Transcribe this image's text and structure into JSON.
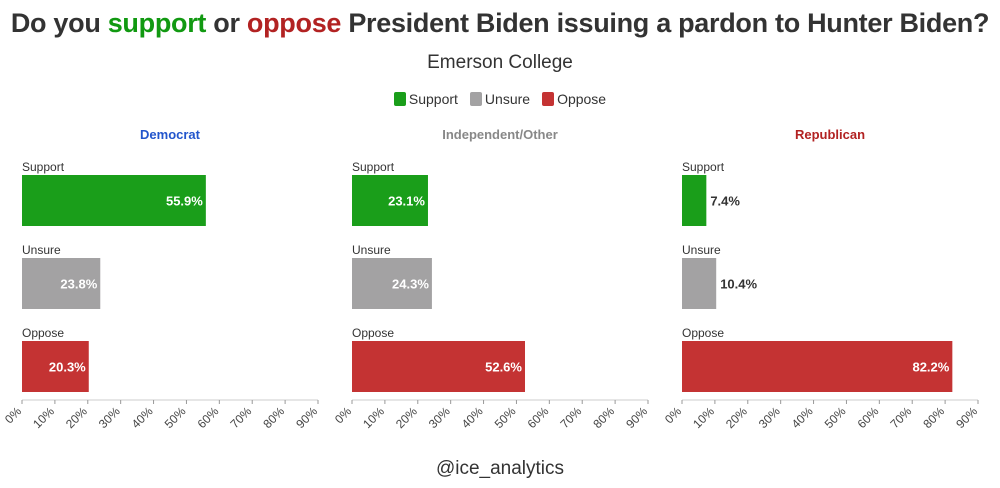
{
  "title": {
    "prefix": "Do you ",
    "word1": "support",
    "middle": " or ",
    "word2": "oppose",
    "suffix": " President Biden issuing a pardon to Hunter Biden?",
    "word1_color": "#119911",
    "word2_color": "#b22222"
  },
  "subtitle": "Emerson College",
  "legend": [
    {
      "label": "Support",
      "color": "#1a9e1a"
    },
    {
      "label": "Unsure",
      "color": "#a3a2a3"
    },
    {
      "label": "Oppose",
      "color": "#c43333"
    }
  ],
  "caption": "@ice_analytics",
  "chart_data": {
    "type": "bar",
    "orientation": "horizontal",
    "title": "Do you support or oppose President Biden issuing a pardon to Hunter Biden?",
    "subtitle": "Emerson College",
    "categories": [
      "Support",
      "Unsure",
      "Oppose"
    ],
    "xlim": [
      0,
      90
    ],
    "x_ticks": [
      "0%",
      "10%",
      "20%",
      "30%",
      "40%",
      "50%",
      "60%",
      "70%",
      "80%",
      "90%"
    ],
    "legend_position": "top-center",
    "panels": [
      {
        "name": "Democrat",
        "color": "#2255cc",
        "values": [
          55.9,
          23.8,
          20.3
        ],
        "labels": [
          "55.9%",
          "23.8%",
          "20.3%"
        ]
      },
      {
        "name": "Independent/Other",
        "color": "#888888",
        "values": [
          23.1,
          24.3,
          52.6
        ],
        "labels": [
          "23.1%",
          "24.3%",
          "52.6%"
        ]
      },
      {
        "name": "Republican",
        "color": "#b22222",
        "values": [
          7.4,
          10.4,
          82.2
        ],
        "labels": [
          "7.4%",
          "10.4%",
          "82.2%"
        ]
      }
    ],
    "bar_colors": [
      "#1a9e1a",
      "#a3a2a3",
      "#c43333"
    ]
  }
}
